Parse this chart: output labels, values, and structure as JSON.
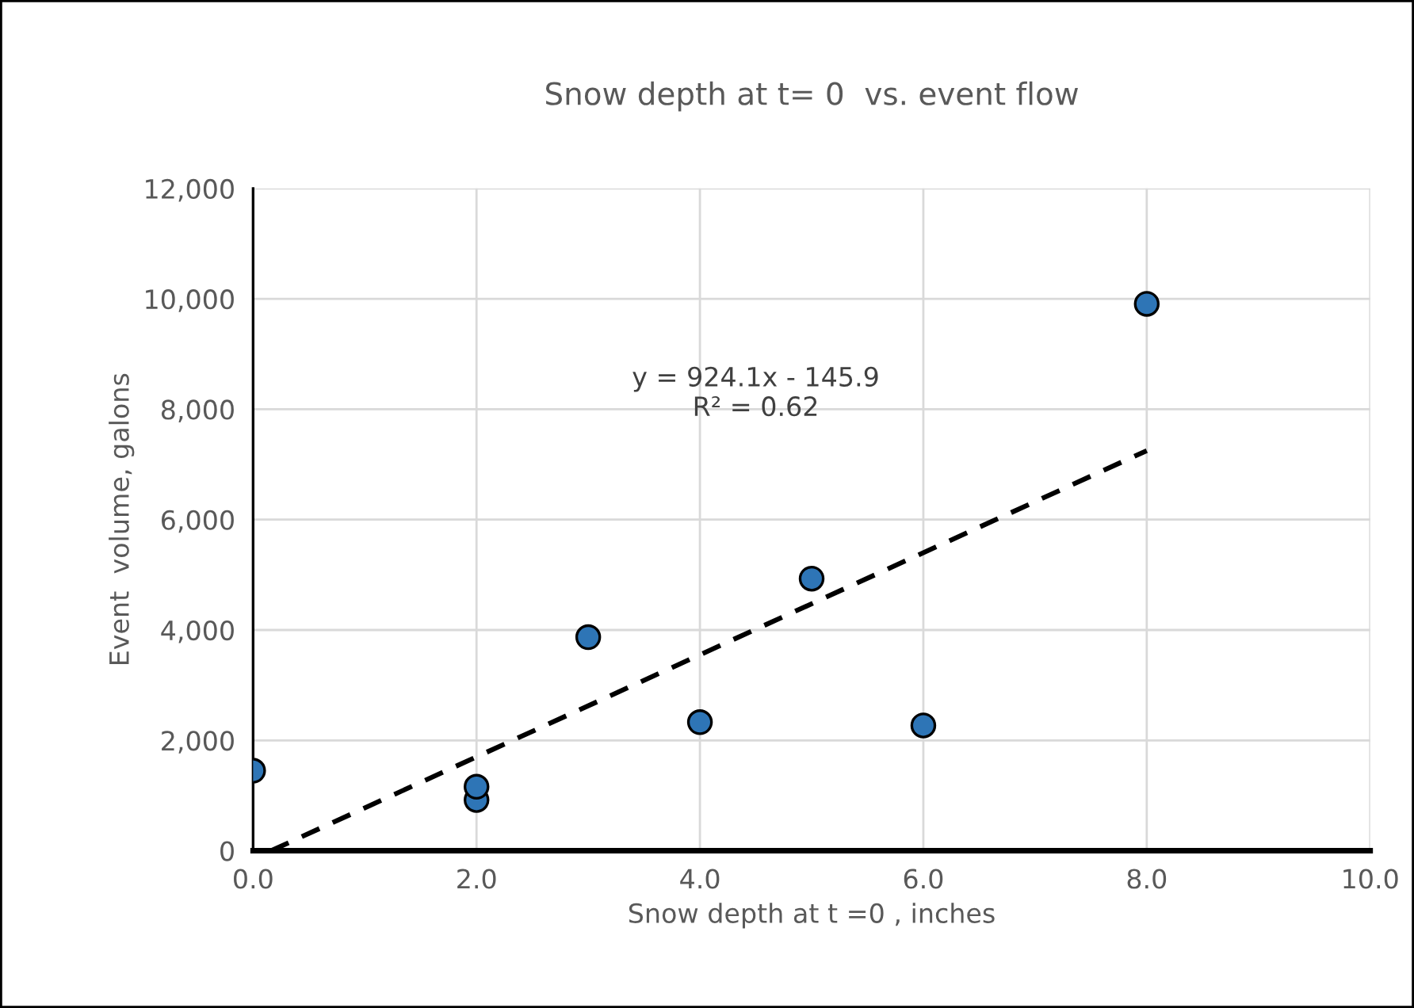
{
  "chart_data": {
    "type": "scatter",
    "title": "Snow depth at t= 0  vs. event flow",
    "xlabel": "Snow depth at t =0 , inches",
    "ylabel": "Event  volume, galons",
    "x": [
      0,
      2,
      2,
      3,
      4,
      5,
      6,
      8
    ],
    "series": [
      {
        "color": "#2e75b6",
        "marker": "circle",
        "values": [
          1450,
          920,
          1160,
          3870,
          2330,
          4930,
          2270,
          9910
        ]
      },
      {
        "type": "line",
        "color": "#000000",
        "line_style": "dashed",
        "marker": "none",
        "x": [
          0.16,
          8
        ],
        "values": [
          0,
          7250
        ]
      }
    ],
    "annotations": [
      "y = 924.1x - 145.9\nR² = 0.62"
    ],
    "xlim": [
      0,
      10
    ],
    "xticks": [
      {
        "value": 0,
        "label": "0.0"
      },
      {
        "value": 2,
        "label": "2.0"
      },
      {
        "value": 4,
        "label": "4.0"
      },
      {
        "value": 6,
        "label": "6.0"
      },
      {
        "value": 8,
        "label": "8.0"
      },
      {
        "value": 10,
        "label": "10.0"
      }
    ],
    "ylim": [
      0,
      12000
    ],
    "yticks": [
      {
        "value": 0,
        "label": "0"
      },
      {
        "value": 2000,
        "label": "2,000"
      },
      {
        "value": 4000,
        "label": "4,000"
      },
      {
        "value": 6000,
        "label": "6,000"
      },
      {
        "value": 8000,
        "label": "8,000"
      },
      {
        "value": 10000,
        "label": "10,000"
      },
      {
        "value": 12000,
        "label": "12,000"
      }
    ],
    "grid": true,
    "legend": false
  }
}
